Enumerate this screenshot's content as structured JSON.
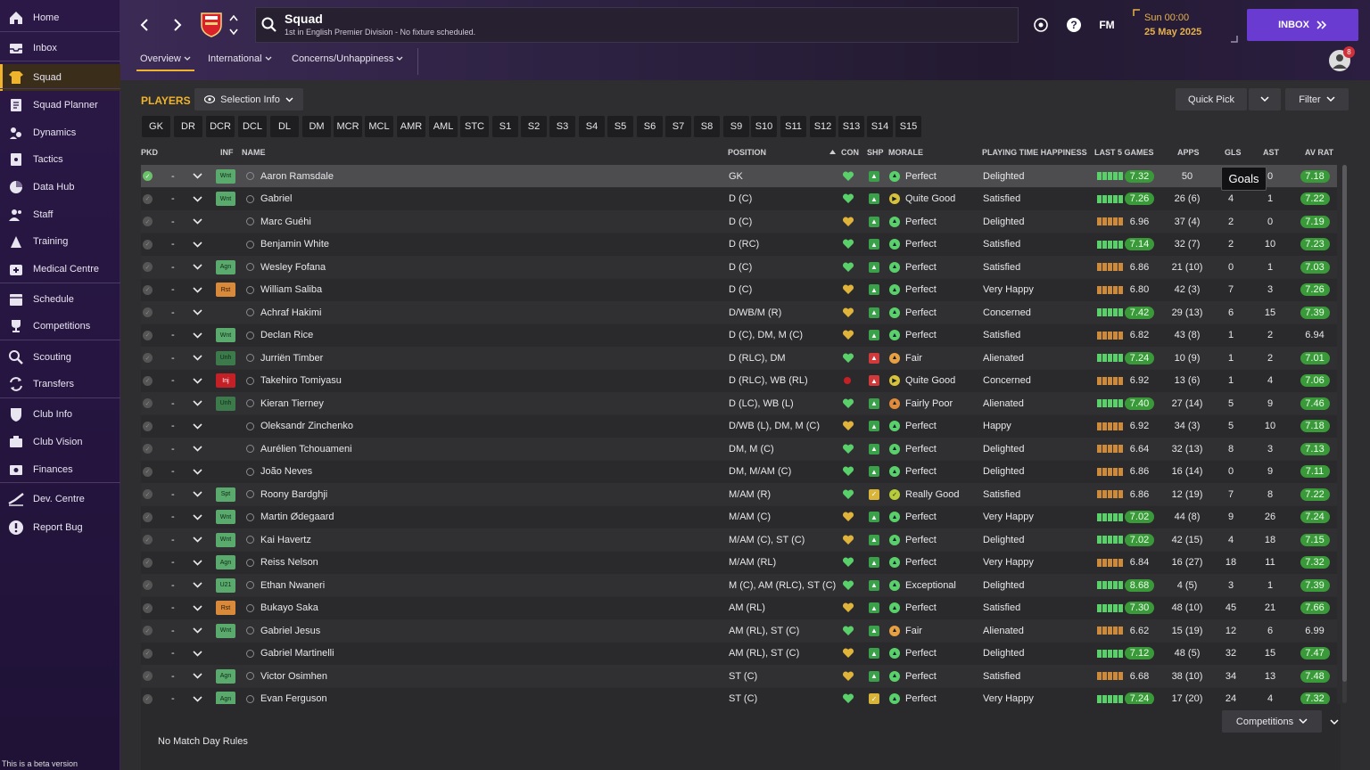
{
  "sidebar": {
    "items": [
      {
        "label": "Home",
        "icon": "home-icon"
      },
      {
        "label": "Inbox",
        "icon": "inbox-icon"
      },
      {
        "label": "Squad",
        "icon": "shirt-icon"
      },
      {
        "label": "Squad Planner",
        "icon": "planner-icon"
      },
      {
        "label": "Dynamics",
        "icon": "dynamics-icon"
      },
      {
        "label": "Tactics",
        "icon": "tactics-icon"
      },
      {
        "label": "Data Hub",
        "icon": "data-hub-icon"
      },
      {
        "label": "Staff",
        "icon": "staff-icon"
      },
      {
        "label": "Training",
        "icon": "training-icon"
      },
      {
        "label": "Medical Centre",
        "icon": "medical-icon"
      },
      {
        "label": "Schedule",
        "icon": "calendar-icon"
      },
      {
        "label": "Competitions",
        "icon": "trophy-icon"
      },
      {
        "label": "Scouting",
        "icon": "magnifier-icon"
      },
      {
        "label": "Transfers",
        "icon": "transfer-icon"
      },
      {
        "label": "Club Info",
        "icon": "shield-icon"
      },
      {
        "label": "Club Vision",
        "icon": "vision-icon"
      },
      {
        "label": "Finances",
        "icon": "finances-icon"
      },
      {
        "label": "Dev. Centre",
        "icon": "dev-centre-icon"
      },
      {
        "label": "Report Bug",
        "icon": "bug-icon"
      }
    ],
    "beta_note": "This is a beta version"
  },
  "header": {
    "title": "Squad",
    "subtitle": "1st in English Premier Division - No fixture scheduled.",
    "time": "Sun 00:00",
    "date": "25 May 2025",
    "inbox_label": "INBOX",
    "fm_label": "FM",
    "notification_count": "8",
    "tabs": [
      {
        "label": "Overview"
      },
      {
        "label": "International"
      },
      {
        "label": "Concerns/Unhappiness"
      }
    ]
  },
  "toolbar": {
    "players_label": "PLAYERS",
    "selection_info": "Selection Info",
    "quick_pick": "Quick Pick",
    "filter": "Filter",
    "positions": [
      "GK",
      "DR",
      "DCR",
      "DCL",
      "DL",
      "DM",
      "MCR",
      "MCL",
      "AMR",
      "AML",
      "STC",
      "S1",
      "S2",
      "S3",
      "S4",
      "S5",
      "S6",
      "S7",
      "S8",
      "S9",
      "S10",
      "S11",
      "S12",
      "S13",
      "S14",
      "S15"
    ]
  },
  "table": {
    "headers": {
      "pkd": "PKD",
      "inf": "INF",
      "name": "NAME",
      "position": "POSITION",
      "con": "CON",
      "shp": "SHP",
      "morale": "MORALE",
      "pth": "PLAYING TIME HAPPINESS",
      "last5": "LAST 5 GAMES",
      "apps": "APPS",
      "gls": "GLS",
      "ast": "AST",
      "avrat": "AV RAT"
    },
    "rows": [
      {
        "inf": "Wnt",
        "name": "Aaron Ramsdale",
        "pos": "GK",
        "con": "g",
        "shp": "g",
        "morale": "Perfect",
        "pth": "Delighted",
        "last5": "7.32",
        "l5g": true,
        "apps": "50",
        "gls": "",
        "ast": "0",
        "avrat": "7.18",
        "avg": true
      },
      {
        "inf": "Wnt",
        "name": "Gabriel",
        "pos": "D (C)",
        "con": "g",
        "shp": "g",
        "morale": "Quite Good",
        "pth": "Satisfied",
        "last5": "7.26",
        "l5g": true,
        "apps": "26 (6)",
        "gls": "4",
        "ast": "1",
        "avrat": "7.22",
        "avg": true
      },
      {
        "inf": "",
        "name": "Marc Guéhi",
        "pos": "D (C)",
        "con": "y",
        "shp": "g",
        "morale": "Perfect",
        "pth": "Delighted",
        "last5": "6.96",
        "l5g": false,
        "apps": "37 (4)",
        "gls": "2",
        "ast": "0",
        "avrat": "7.19",
        "avg": true
      },
      {
        "inf": "",
        "name": "Benjamin White",
        "pos": "D (RC)",
        "con": "g",
        "shp": "g",
        "morale": "Perfect",
        "pth": "Satisfied",
        "last5": "7.14",
        "l5g": true,
        "apps": "32 (7)",
        "gls": "2",
        "ast": "10",
        "avrat": "7.23",
        "avg": true
      },
      {
        "inf": "Agn",
        "name": "Wesley Fofana",
        "pos": "D (C)",
        "con": "g",
        "shp": "g",
        "morale": "Perfect",
        "pth": "Satisfied",
        "last5": "6.86",
        "l5g": false,
        "apps": "21 (10)",
        "gls": "0",
        "ast": "1",
        "avrat": "7.03",
        "avg": true
      },
      {
        "inf": "Rst",
        "name": "William Saliba",
        "pos": "D (C)",
        "con": "y",
        "shp": "g",
        "morale": "Perfect",
        "pth": "Very Happy",
        "last5": "6.80",
        "l5g": false,
        "apps": "42 (3)",
        "gls": "7",
        "ast": "3",
        "avrat": "7.26",
        "avg": true
      },
      {
        "inf": "",
        "name": "Achraf Hakimi",
        "pos": "D/WB/M (R)",
        "con": "y",
        "shp": "g",
        "morale": "Perfect",
        "pth": "Concerned",
        "last5": "7.42",
        "l5g": true,
        "apps": "29 (13)",
        "gls": "6",
        "ast": "15",
        "avrat": "7.39",
        "avg": true
      },
      {
        "inf": "Wnt",
        "name": "Declan Rice",
        "pos": "D (C), DM, M (C)",
        "con": "y",
        "shp": "g",
        "morale": "Perfect",
        "pth": "Satisfied",
        "last5": "6.82",
        "l5g": false,
        "apps": "43 (8)",
        "gls": "1",
        "ast": "2",
        "avrat": "6.94",
        "avg": false
      },
      {
        "inf": "Unh",
        "name": "Jurriën Timber",
        "pos": "D (RLC), DM",
        "con": "g",
        "shp": "r",
        "morale": "Fair",
        "pth": "Alienated",
        "last5": "7.24",
        "l5g": true,
        "apps": "10 (9)",
        "gls": "1",
        "ast": "2",
        "avrat": "7.01",
        "avg": true
      },
      {
        "inf": "Inj",
        "name": "Takehiro Tomiyasu",
        "pos": "D (RLC), WB (RL)",
        "con": "inj",
        "shp": "r",
        "morale": "Quite Good",
        "pth": "Concerned",
        "last5": "6.92",
        "l5g": false,
        "apps": "13 (6)",
        "gls": "1",
        "ast": "4",
        "avrat": "7.06",
        "avg": true
      },
      {
        "inf": "Unh",
        "name": "Kieran Tierney",
        "pos": "D (LC), WB (L)",
        "con": "g",
        "shp": "g",
        "morale": "Fairly Poor",
        "pth": "Alienated",
        "last5": "7.40",
        "l5g": true,
        "apps": "27 (14)",
        "gls": "5",
        "ast": "9",
        "avrat": "7.46",
        "avg": true
      },
      {
        "inf": "",
        "name": "Oleksandr Zinchenko",
        "pos": "D/WB (L), DM, M (C)",
        "con": "y",
        "shp": "g",
        "morale": "Perfect",
        "pth": "Happy",
        "last5": "6.92",
        "l5g": false,
        "apps": "34 (3)",
        "gls": "5",
        "ast": "10",
        "avrat": "7.18",
        "avg": true
      },
      {
        "inf": "",
        "name": "Aurélien Tchouameni",
        "pos": "DM, M (C)",
        "con": "g",
        "shp": "g",
        "morale": "Perfect",
        "pth": "Delighted",
        "last5": "6.64",
        "l5g": false,
        "apps": "32 (13)",
        "gls": "8",
        "ast": "3",
        "avrat": "7.13",
        "avg": true
      },
      {
        "inf": "",
        "name": "João Neves",
        "pos": "DM, M/AM (C)",
        "con": "g",
        "shp": "g",
        "morale": "Perfect",
        "pth": "Delighted",
        "last5": "6.86",
        "l5g": false,
        "apps": "16 (14)",
        "gls": "0",
        "ast": "9",
        "avrat": "7.11",
        "avg": true
      },
      {
        "inf": "Spt",
        "name": "Roony Bardghji",
        "pos": "M/AM (R)",
        "con": "g",
        "shp": "y",
        "morale": "Really Good",
        "pth": "Satisfied",
        "last5": "6.86",
        "l5g": false,
        "apps": "12 (19)",
        "gls": "7",
        "ast": "8",
        "avrat": "7.22",
        "avg": true
      },
      {
        "inf": "Wnt",
        "name": "Martin Ødegaard",
        "pos": "M/AM (C)",
        "con": "y",
        "shp": "g",
        "morale": "Perfect",
        "pth": "Very Happy",
        "last5": "7.02",
        "l5g": true,
        "apps": "44 (8)",
        "gls": "9",
        "ast": "26",
        "avrat": "7.24",
        "avg": true
      },
      {
        "inf": "Wnt",
        "name": "Kai Havertz",
        "pos": "M/AM (C), ST (C)",
        "con": "y",
        "shp": "g",
        "morale": "Perfect",
        "pth": "Delighted",
        "last5": "7.02",
        "l5g": true,
        "apps": "42 (15)",
        "gls": "4",
        "ast": "18",
        "avrat": "7.15",
        "avg": true
      },
      {
        "inf": "Agn",
        "name": "Reiss Nelson",
        "pos": "M/AM (RL)",
        "con": "g",
        "shp": "g",
        "morale": "Perfect",
        "pth": "Very Happy",
        "last5": "6.84",
        "l5g": false,
        "apps": "16 (27)",
        "gls": "18",
        "ast": "11",
        "avrat": "7.32",
        "avg": true
      },
      {
        "inf": "U21",
        "name": "Ethan Nwaneri",
        "pos": "M (C), AM (RLC), ST (C)",
        "con": "g",
        "shp": "g",
        "morale": "Exceptional",
        "pth": "Delighted",
        "last5": "8.68",
        "l5g": true,
        "apps": "4 (5)",
        "gls": "3",
        "ast": "1",
        "avrat": "7.39",
        "avg": true
      },
      {
        "inf": "Rst",
        "name": "Bukayo Saka",
        "pos": "AM (RL)",
        "con": "y",
        "shp": "g",
        "morale": "Perfect",
        "pth": "Satisfied",
        "last5": "7.30",
        "l5g": true,
        "apps": "48 (10)",
        "gls": "45",
        "ast": "21",
        "avrat": "7.66",
        "avg": true
      },
      {
        "inf": "Wnt",
        "name": "Gabriel Jesus",
        "pos": "AM (RL), ST (C)",
        "con": "g",
        "shp": "g",
        "morale": "Fair",
        "pth": "Alienated",
        "last5": "6.62",
        "l5g": false,
        "apps": "15 (19)",
        "gls": "12",
        "ast": "6",
        "avrat": "6.99",
        "avg": false
      },
      {
        "inf": "",
        "name": "Gabriel Martinelli",
        "pos": "AM (RL), ST (C)",
        "con": "y",
        "shp": "g",
        "morale": "Perfect",
        "pth": "Delighted",
        "last5": "7.12",
        "l5g": true,
        "apps": "48 (5)",
        "gls": "32",
        "ast": "15",
        "avrat": "7.47",
        "avg": true
      },
      {
        "inf": "Agn",
        "name": "Victor Osimhen",
        "pos": "ST (C)",
        "con": "y",
        "shp": "g",
        "morale": "Perfect",
        "pth": "Satisfied",
        "last5": "6.68",
        "l5g": false,
        "apps": "38 (10)",
        "gls": "34",
        "ast": "13",
        "avrat": "7.48",
        "avg": true
      },
      {
        "inf": "Agn",
        "name": "Evan Ferguson",
        "pos": "ST (C)",
        "con": "g",
        "shp": "y",
        "morale": "Perfect",
        "pth": "Very Happy",
        "last5": "7.24",
        "l5g": true,
        "apps": "17 (20)",
        "gls": "24",
        "ast": "4",
        "avrat": "7.32",
        "avg": true
      }
    ]
  },
  "tooltip": "Goals",
  "footer": {
    "competitions": "Competitions",
    "no_rules": "No Match Day Rules"
  }
}
